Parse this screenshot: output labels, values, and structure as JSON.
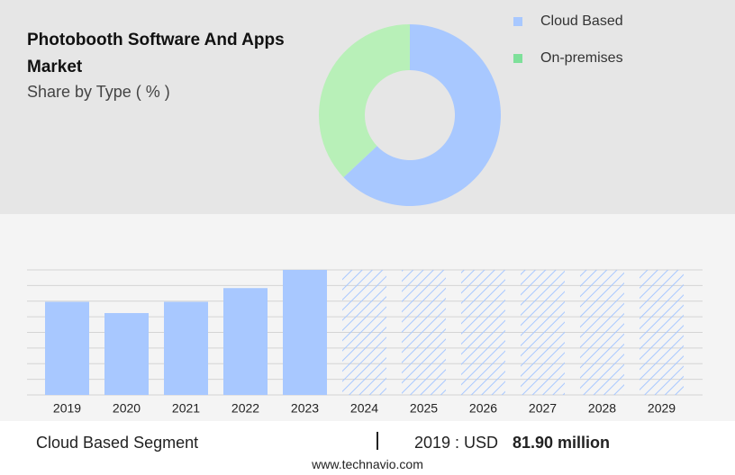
{
  "chart_data": [
    {
      "type": "pie",
      "title": "Photobooth Software And Apps Market",
      "subtitle": "Share by Type ( % )",
      "categories": [
        "Cloud Based",
        "On-premises"
      ],
      "values": [
        63,
        37
      ],
      "colors": [
        "#a8c8ff",
        "#b8f0b8"
      ],
      "legend_colors": [
        "#a8c8ff",
        "#7ee09a"
      ]
    },
    {
      "type": "bar",
      "categories": [
        "2019",
        "2020",
        "2021",
        "2022",
        "2023",
        "2024",
        "2025",
        "2026",
        "2027",
        "2028",
        "2029"
      ],
      "values": [
        81.9,
        72,
        81.9,
        94,
        110,
        null,
        null,
        null,
        null,
        null,
        null
      ],
      "color": "#a8c8ff",
      "ylim": [
        0,
        110
      ],
      "yticks": [
        0,
        13.75,
        27.5,
        41.25,
        55,
        68.75,
        82.5,
        96.25,
        110
      ],
      "grid": true
    }
  ],
  "footer": {
    "segment": "Cloud Based Segment",
    "year_label": "2019 : USD",
    "value_label": "81.90 million",
    "source": "www.technavio.com"
  }
}
